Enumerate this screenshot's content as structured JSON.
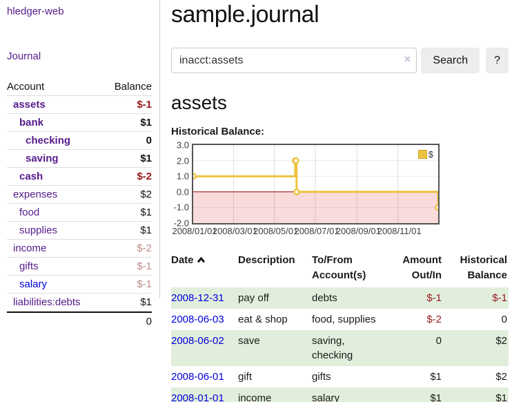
{
  "sidebar": {
    "brand": "hledger-web",
    "nav": {
      "journal_label": "Journal"
    },
    "accounts_table": {
      "headers": {
        "account": "Account",
        "balance": "Balance"
      },
      "rows": [
        {
          "name": "assets",
          "balance": "$-1"
        },
        {
          "name": "bank",
          "balance": "$1"
        },
        {
          "name": "checking",
          "balance": "0"
        },
        {
          "name": "saving",
          "balance": "$1"
        },
        {
          "name": "cash",
          "balance": "$-2"
        },
        {
          "name": "expenses",
          "balance": "$2"
        },
        {
          "name": "food",
          "balance": "$1"
        },
        {
          "name": "supplies",
          "balance": "$1"
        },
        {
          "name": "income",
          "balance": "$-2"
        },
        {
          "name": "gifts",
          "balance": "$-1"
        },
        {
          "name": "salary",
          "balance": "$-1"
        },
        {
          "name": "liabilities:debts",
          "balance": "$1"
        }
      ],
      "total": "0"
    }
  },
  "header": {
    "title": "sample.journal"
  },
  "search": {
    "value": "inacct:assets",
    "clear_icon": "×",
    "search_button": "Search",
    "help_button": "?"
  },
  "main": {
    "account_heading": "assets",
    "chart_title": "Historical Balance:"
  },
  "chart_data": {
    "type": "line",
    "title": "Historical Balance:",
    "step": true,
    "xrange": [
      "2008-01-01",
      "2008-12-31"
    ],
    "ylim": [
      -2.0,
      3.0
    ],
    "series": [
      {
        "name": "$",
        "color": "#edc240",
        "points": [
          {
            "date": "2008-01-01",
            "value": 1
          },
          {
            "date": "2008-06-01",
            "value": 2
          },
          {
            "date": "2008-06-02",
            "value": 2
          },
          {
            "date": "2008-06-03",
            "value": 0
          },
          {
            "date": "2008-12-31",
            "value": -1
          }
        ]
      }
    ],
    "xticks": [
      {
        "label": "2008/01/01",
        "date": "2008-01-01"
      },
      {
        "label": "2008/03/01",
        "date": "2008-03-01"
      },
      {
        "label": "2008/05/01",
        "date": "2008-05-01"
      },
      {
        "label": "2008/07/01",
        "date": "2008-07-01"
      },
      {
        "label": "2008/09/01",
        "date": "2008-09-01"
      },
      {
        "label": "2008/11/01",
        "date": "2008-11-01"
      }
    ],
    "yticks": [
      {
        "label": "3.0",
        "value": 3
      },
      {
        "label": "2.0",
        "value": 2
      },
      {
        "label": "1.0",
        "value": 1
      },
      {
        "label": "0.0",
        "value": 0
      },
      {
        "label": "-1.0",
        "value": -1
      },
      {
        "label": "-2.0",
        "value": -2
      }
    ],
    "legend": {
      "label": "$",
      "position": "top-right"
    },
    "grid": true,
    "negative_region_color": "#fadbdb",
    "zero_line_color": "#8b0000"
  },
  "register": {
    "headers": {
      "date": "Date",
      "description": "Description",
      "tofrom_line1": "To/From",
      "tofrom_line2": "Account(s)",
      "amount_line1": "Amount",
      "amount_line2": "Out/In",
      "balance_line1": "Historical",
      "balance_line2": "Balance"
    },
    "rows": [
      {
        "date": "2008-12-31",
        "description": "pay off",
        "accounts": "debts",
        "accounts2": "",
        "amount": "$-1",
        "balance": "$-1"
      },
      {
        "date": "2008-06-03",
        "description": "eat & shop",
        "accounts": "food, supplies",
        "accounts2": "",
        "amount": "$-2",
        "balance": "0"
      },
      {
        "date": "2008-06-02",
        "description": "save",
        "accounts": "saving,",
        "accounts2": "checking",
        "amount": "0",
        "balance": "$2"
      },
      {
        "date": "2008-06-01",
        "description": "gift",
        "accounts": "gifts",
        "accounts2": "",
        "amount": "$1",
        "balance": "$2"
      },
      {
        "date": "2008-01-01",
        "description": "income",
        "accounts": "salary",
        "accounts2": "",
        "amount": "$1",
        "balance": "$1"
      }
    ]
  }
}
